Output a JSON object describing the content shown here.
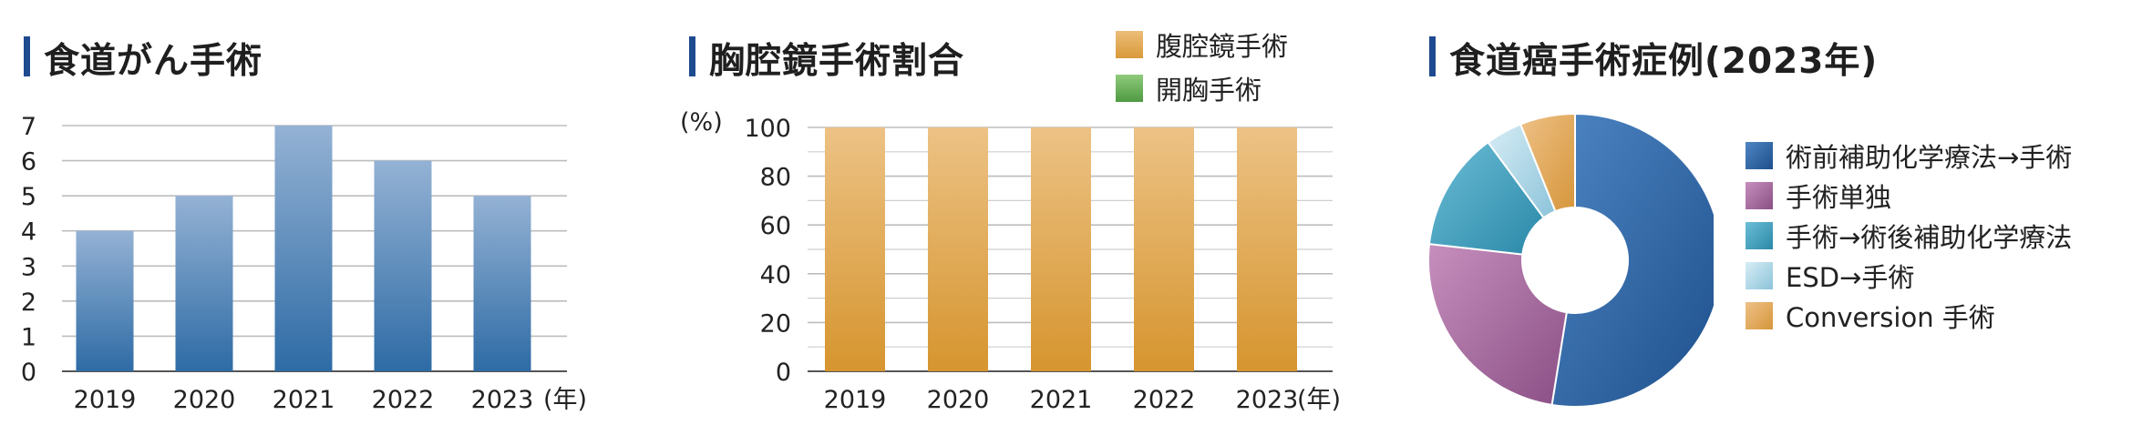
{
  "chart_data": [
    {
      "type": "bar",
      "title": "食道がん手術",
      "categories": [
        "2019",
        "2020",
        "2021",
        "2022",
        "2023"
      ],
      "values": [
        4,
        5,
        7,
        6,
        5
      ],
      "ylim": [
        0,
        7
      ],
      "yticks": [
        "0",
        "1",
        "2",
        "3",
        "4",
        "5",
        "6",
        "7"
      ],
      "xunit": "(年)",
      "grid": true,
      "color": "#4f80b8"
    },
    {
      "type": "bar",
      "title": "胸腔鏡手術割合",
      "categories": [
        "2019",
        "2020",
        "2021",
        "2022",
        "2023"
      ],
      "series": [
        {
          "name": "腹腔鏡手術",
          "values": [
            100,
            100,
            100,
            100,
            100
          ],
          "color": "#e0a552"
        },
        {
          "name": "開胸手術",
          "values": [
            0,
            0,
            0,
            0,
            0
          ],
          "color": "#6fae5c"
        }
      ],
      "ylim": [
        0,
        100
      ],
      "yticks": [
        "0",
        "20",
        "40",
        "60",
        "80",
        "100"
      ],
      "yunit": "(%)",
      "xunit": "(年)",
      "grid": true,
      "legend_position": "top-right"
    },
    {
      "type": "pie",
      "title": "食道癌手術症例(2023年)",
      "labels": [
        "術前補助化学療法→手術",
        "手術単独",
        "手術→術後補助化学療法",
        "ESD→手術",
        "Conversion 手術"
      ],
      "values": [
        52,
        24,
        13,
        4,
        6
      ],
      "colors": [
        "#2a64a3",
        "#a0689a",
        "#3a9ab8",
        "#9fcde0",
        "#e0a552"
      ],
      "legend_position": "right"
    }
  ]
}
